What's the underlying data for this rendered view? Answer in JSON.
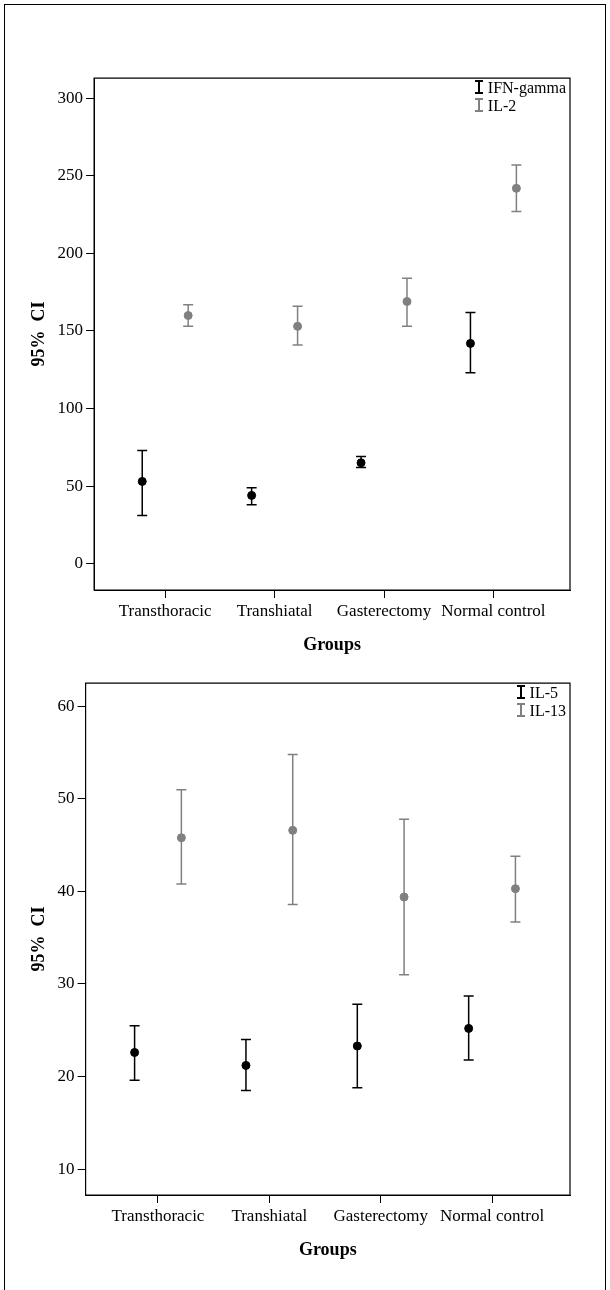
{
  "chart_data": [
    {
      "type": "scatter",
      "xlabel": "Groups",
      "ylabel": "95%  CI",
      "categories": [
        "Transthoracic",
        "Transhiatal",
        "Gasterectomy",
        "Normal control"
      ],
      "series": [
        {
          "name": "IFN-gamma",
          "color": "#000000",
          "values": [
            53,
            44,
            65,
            142
          ],
          "errors": [
            [
              31,
              73
            ],
            [
              38,
              49
            ],
            [
              62,
              69
            ],
            [
              123,
              162
            ]
          ]
        },
        {
          "name": "IL-2",
          "color": "#808080",
          "values": [
            160,
            153,
            169,
            242
          ],
          "errors": [
            [
              153,
              167
            ],
            [
              141,
              166
            ],
            [
              153,
              184
            ],
            [
              227,
              257
            ]
          ]
        }
      ],
      "ylim": [
        -17,
        313
      ],
      "yticks": [
        0,
        50,
        100,
        150,
        200,
        250,
        300
      ],
      "grid": false,
      "legend": "top right",
      "marker": "circle"
    },
    {
      "type": "scatter",
      "xlabel": "Groups",
      "ylabel": "95%  CI",
      "categories": [
        "Transthoracic",
        "Transhiatal",
        "Gasterectomy",
        "Normal control"
      ],
      "series": [
        {
          "name": "IL-5",
          "color": "#000000",
          "values": [
            22.6,
            21.2,
            23.3,
            25.2
          ],
          "errors": [
            [
              19.6,
              25.5
            ],
            [
              18.5,
              24
            ],
            [
              18.8,
              27.8
            ],
            [
              21.8,
              28.7
            ]
          ]
        },
        {
          "name": "IL-13",
          "color": "#808080",
          "values": [
            45.8,
            46.6,
            39.4,
            40.3
          ],
          "errors": [
            [
              40.8,
              51
            ],
            [
              38.6,
              54.8
            ],
            [
              31,
              47.8
            ],
            [
              36.7,
              43.8
            ]
          ]
        }
      ],
      "ylim": [
        7.2,
        62.5
      ],
      "yticks": [
        10,
        20,
        30,
        40,
        50,
        60
      ],
      "grid": false,
      "legend": "top right",
      "marker": "circle"
    }
  ]
}
